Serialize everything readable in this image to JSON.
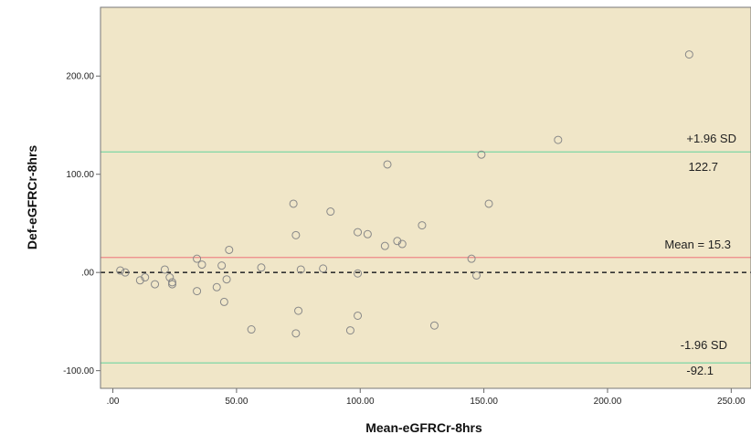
{
  "chart_data": {
    "type": "scatter",
    "title": "",
    "xlabel": "Mean-eGFRCr-8hrs",
    "ylabel": "Def-eGFRCr-8hrs",
    "xlim": [
      -5,
      258
    ],
    "ylim": [
      -118,
      270
    ],
    "x_ticks": [
      0,
      50,
      100,
      150,
      200,
      250
    ],
    "x_tick_labels": [
      ".00",
      "50.00",
      "100.00",
      "150.00",
      "200.00",
      "250.00"
    ],
    "y_ticks": [
      -100,
      0,
      100,
      200
    ],
    "y_tick_labels": [
      "-100.00",
      ".00",
      "100.00",
      "200.00"
    ],
    "grid": false,
    "background_color": "#f0e6c8",
    "point_color": "#888888",
    "lines": {
      "zero": {
        "value": 0,
        "color": "#333333",
        "style": "dashed"
      },
      "mean": {
        "value": 15.3,
        "color": "#ee8888",
        "label": "Mean = 15.3"
      },
      "upper": {
        "value": 122.7,
        "color": "#88d8a8",
        "label": "+1.96 SD",
        "value_label": "122.7"
      },
      "lower": {
        "value": -92.1,
        "color": "#88d8a8",
        "label": "-1.96 SD",
        "value_label": "-92.1"
      }
    },
    "points": [
      [
        3,
        2
      ],
      [
        5,
        0
      ],
      [
        11,
        -8
      ],
      [
        13,
        -5
      ],
      [
        17,
        -12
      ],
      [
        21,
        3
      ],
      [
        23,
        -5
      ],
      [
        24,
        -10
      ],
      [
        24,
        -12
      ],
      [
        34,
        -19
      ],
      [
        34,
        14
      ],
      [
        36,
        8
      ],
      [
        42,
        -15
      ],
      [
        44,
        7
      ],
      [
        45,
        -30
      ],
      [
        46,
        -7
      ],
      [
        47,
        23
      ],
      [
        56,
        -58
      ],
      [
        60,
        5
      ],
      [
        73,
        70
      ],
      [
        74,
        38
      ],
      [
        74,
        -62
      ],
      [
        75,
        -39
      ],
      [
        76,
        3
      ],
      [
        85,
        4
      ],
      [
        88,
        62
      ],
      [
        96,
        -59
      ],
      [
        99,
        41
      ],
      [
        99,
        -1
      ],
      [
        99,
        -44
      ],
      [
        103,
        39
      ],
      [
        110,
        27
      ],
      [
        111,
        110
      ],
      [
        115,
        32
      ],
      [
        117,
        29
      ],
      [
        125,
        48
      ],
      [
        130,
        -54
      ],
      [
        145,
        14
      ],
      [
        147,
        -3
      ],
      [
        149,
        120
      ],
      [
        152,
        70
      ],
      [
        180,
        135
      ],
      [
        233,
        222
      ]
    ]
  }
}
